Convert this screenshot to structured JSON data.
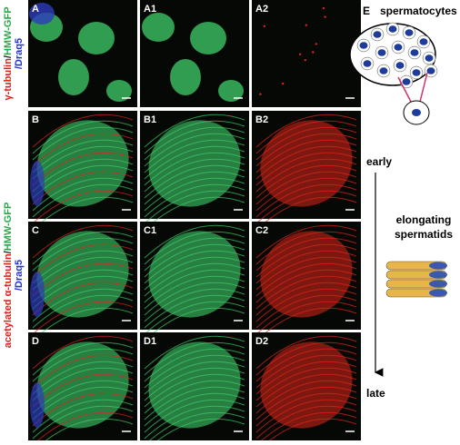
{
  "panels": [
    {
      "label": "A"
    },
    {
      "label": "A1"
    },
    {
      "label": "A2"
    },
    {
      "label": "B"
    },
    {
      "label": "B1"
    },
    {
      "label": "B2"
    },
    {
      "label": "C"
    },
    {
      "label": "C1"
    },
    {
      "label": "C2"
    },
    {
      "label": "D"
    },
    {
      "label": "D1"
    },
    {
      "label": "D2"
    }
  ],
  "side_labels": [
    {
      "parts": [
        "γ-tubulin",
        "/",
        "HMW-GFP"
      ],
      "line2": "/Draq5"
    },
    {
      "parts": [
        "acetylated α-tubulin",
        "/",
        "HMW-GFP"
      ],
      "line2": "/Draq5"
    }
  ],
  "diagram": {
    "label": "E",
    "title": "spermatocytes",
    "early": "early",
    "stage": [
      "elongating",
      "spermatids"
    ],
    "late": "late"
  }
}
